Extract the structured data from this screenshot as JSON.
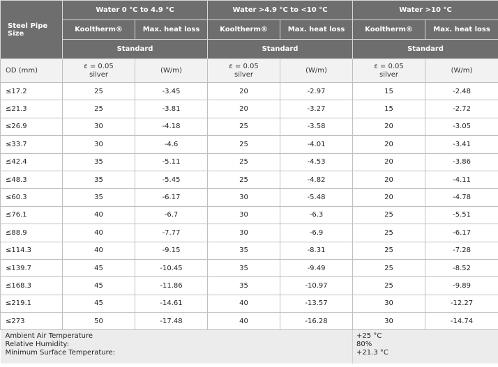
{
  "header": {
    "pipe_size": "Steel Pipe Size",
    "groups": [
      "Water 0 °C to 4.9 °C",
      "Water >4.9 °C to <10 °C",
      "Water >10 °C"
    ],
    "kooltherm": "Kooltherm®",
    "max_heat_loss": "Max. heat loss",
    "standard": "Standard"
  },
  "units": {
    "od": "OD (mm)",
    "emissivity_line1": "ε = 0.05",
    "emissivity_line2": "silver",
    "heat_loss_unit": "(W/m)"
  },
  "rows": [
    {
      "od": "≤17.2",
      "k1": "25",
      "h1": "-3.45",
      "k2": "20",
      "h2": "-2.97",
      "k3": "15",
      "h3": "-2.48"
    },
    {
      "od": "≤21.3",
      "k1": "25",
      "h1": "-3.81",
      "k2": "20",
      "h2": "-3.27",
      "k3": "15",
      "h3": "-2.72"
    },
    {
      "od": "≤26.9",
      "k1": "30",
      "h1": "-4.18",
      "k2": "25",
      "h2": "-3.58",
      "k3": "20",
      "h3": "-3.05"
    },
    {
      "od": "≤33.7",
      "k1": "30",
      "h1": "-4.6",
      "k2": "25",
      "h2": "-4.01",
      "k3": "20",
      "h3": "-3.41"
    },
    {
      "od": "≤42.4",
      "k1": "35",
      "h1": "-5.11",
      "k2": "25",
      "h2": "-4.53",
      "k3": "20",
      "h3": "-3.86"
    },
    {
      "od": "≤48.3",
      "k1": "35",
      "h1": "-5.45",
      "k2": "25",
      "h2": "-4.82",
      "k3": "20",
      "h3": "-4.11"
    },
    {
      "od": "≤60.3",
      "k1": "35",
      "h1": "-6.17",
      "k2": "30",
      "h2": "-5.48",
      "k3": "20",
      "h3": "-4.78"
    },
    {
      "od": "≤76.1",
      "k1": "40",
      "h1": "-6.7",
      "k2": "30",
      "h2": "-6.3",
      "k3": "25",
      "h3": "-5.51"
    },
    {
      "od": "≤88.9",
      "k1": "40",
      "h1": "-7.77",
      "k2": "30",
      "h2": "-6.9",
      "k3": "25",
      "h3": "-6.17"
    },
    {
      "od": "≤114.3",
      "k1": "40",
      "h1": "-9.15",
      "k2": "35",
      "h2": "-8.31",
      "k3": "25",
      "h3": "-7.28"
    },
    {
      "od": "≤139.7",
      "k1": "45",
      "h1": "-10.45",
      "k2": "35",
      "h2": "-9.49",
      "k3": "25",
      "h3": "-8.52"
    },
    {
      "od": "≤168.3",
      "k1": "45",
      "h1": "-11.86",
      "k2": "35",
      "h2": "-10.97",
      "k3": "25",
      "h3": "-9.89"
    },
    {
      "od": "≤219.1",
      "k1": "45",
      "h1": "-14.61",
      "k2": "40",
      "h2": "-13.57",
      "k3": "30",
      "h3": "-12.27"
    },
    {
      "od": "≤273",
      "k1": "50",
      "h1": "-17.48",
      "k2": "40",
      "h2": "-16.28",
      "k3": "30",
      "h3": "-14.74"
    }
  ],
  "footer": {
    "labels": [
      "Ambient Air Temperature",
      "Relative Humidity:",
      "Minimum Surface Temperature:"
    ],
    "values": [
      "+25 °C",
      "80%",
      "+21.3 °C"
    ]
  }
}
